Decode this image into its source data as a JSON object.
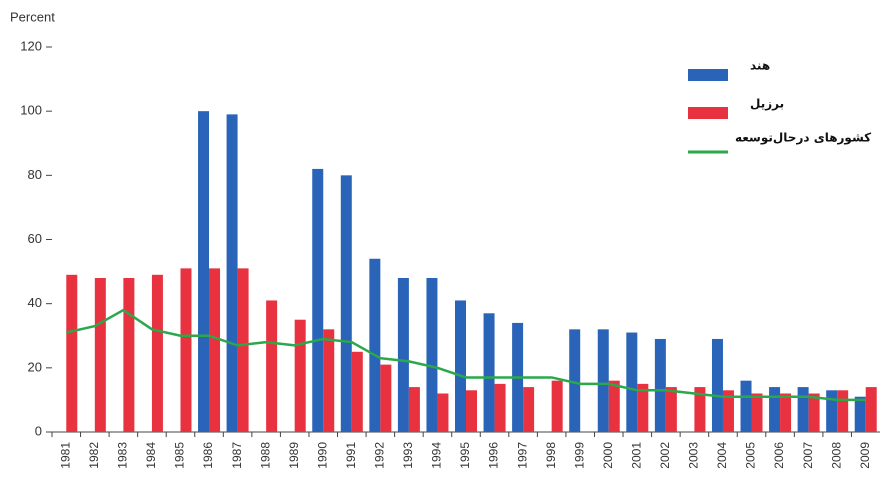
{
  "chart_data": {
    "type": "bar_line",
    "y_label": "Percent",
    "categories": [
      "1981",
      "1982",
      "1983",
      "1984",
      "1985",
      "1986",
      "1987",
      "1988",
      "1989",
      "1990",
      "1991",
      "1992",
      "1993",
      "1994",
      "1995",
      "1996",
      "1997",
      "1998",
      "1999",
      "2000",
      "2001",
      "2002",
      "2003",
      "2004",
      "2005",
      "2006",
      "2007",
      "2008",
      "2009"
    ],
    "series": [
      {
        "name": "هند",
        "type": "bar",
        "color": "#2a64b8",
        "values": [
          null,
          null,
          null,
          null,
          null,
          100,
          99,
          null,
          null,
          82,
          80,
          54,
          48,
          48,
          41,
          37,
          34,
          null,
          32,
          32,
          31,
          29,
          null,
          29,
          16,
          14,
          14,
          13,
          11
        ]
      },
      {
        "name": "برزیل",
        "type": "bar",
        "color": "#e8323f",
        "values": [
          49,
          48,
          48,
          49,
          51,
          51,
          51,
          41,
          35,
          32,
          25,
          21,
          14,
          12,
          13,
          15,
          14,
          16,
          null,
          16,
          15,
          14,
          14,
          13,
          12,
          12,
          12,
          13,
          14
        ]
      },
      {
        "name": "کشورهای درحال‌توسعه",
        "type": "line",
        "color": "#2aa84a",
        "values": [
          31,
          33,
          38,
          32,
          30,
          30,
          27,
          28,
          27,
          29,
          28,
          23,
          22,
          20,
          17,
          17,
          17,
          17,
          15,
          15,
          13,
          13,
          12,
          11,
          11,
          11,
          11,
          10,
          10
        ]
      }
    ],
    "ylim": [
      0,
      120
    ],
    "yticks": [
      0,
      20,
      40,
      60,
      80,
      100,
      120
    ],
    "legend": "top-right",
    "grid": false
  }
}
